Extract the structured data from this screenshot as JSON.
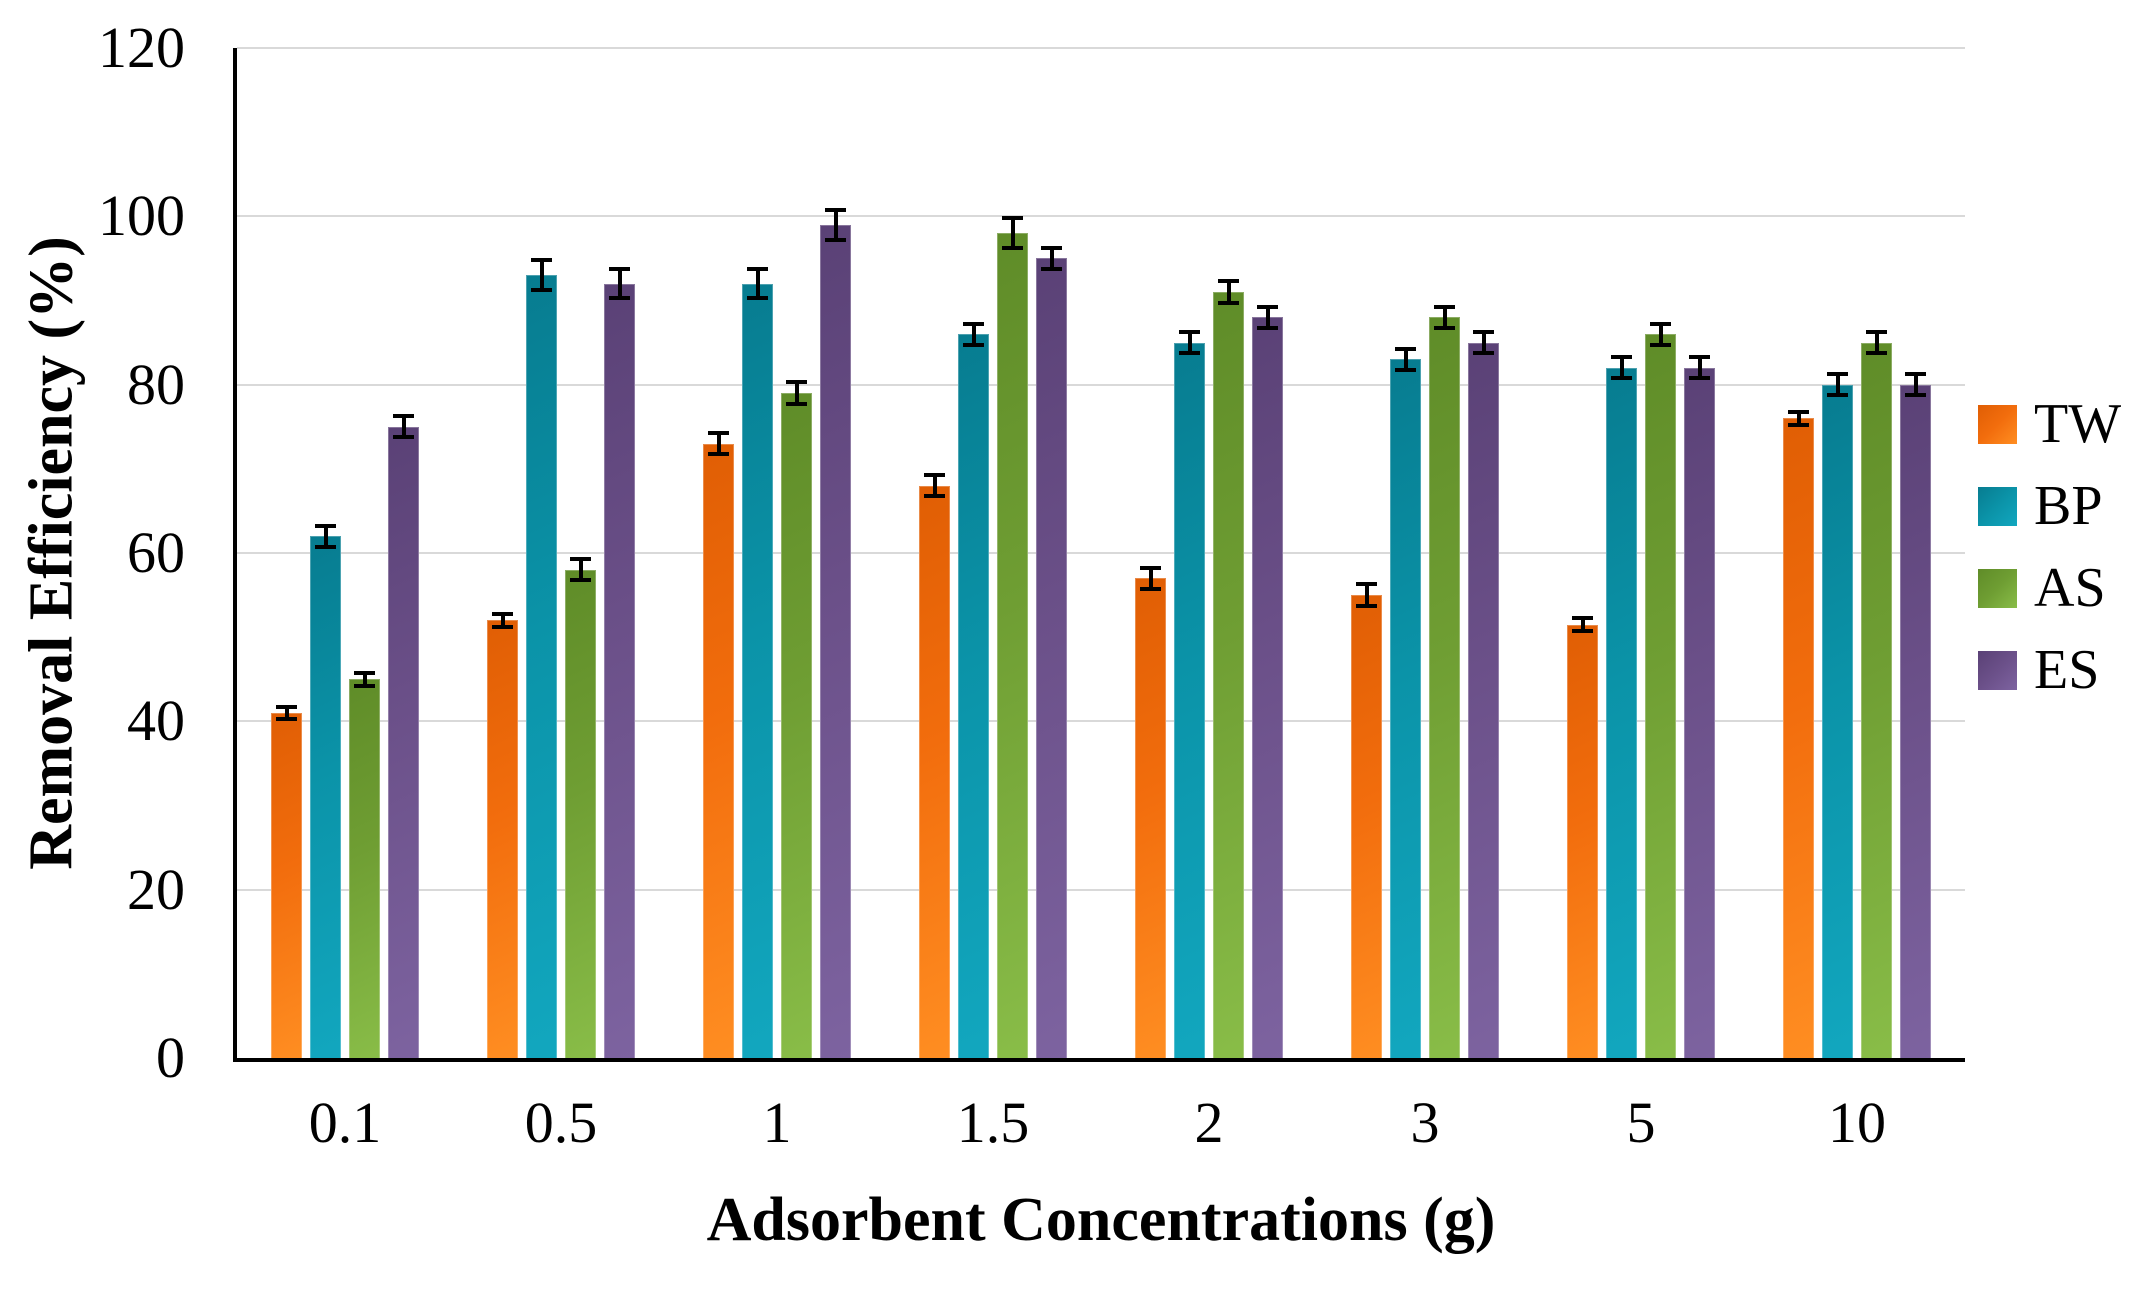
{
  "chart_data": {
    "type": "bar",
    "title": "",
    "xlabel": "Adsorbent Concentrations (g)",
    "ylabel": "Removal Efficiency (%)",
    "categories": [
      "0.1",
      "0.5",
      "1",
      "1.5",
      "2",
      "3",
      "5",
      "10"
    ],
    "series": [
      {
        "name": "TW",
        "color": "#F26D0D",
        "gradient_dark": "#E05E04",
        "gradient_light": "#FF8E22",
        "values": [
          41,
          52,
          73,
          68,
          57,
          55,
          51.5,
          76
        ],
        "errors": [
          1,
          1,
          1.5,
          1.5,
          1.5,
          1.5,
          1,
          1
        ]
      },
      {
        "name": "BP",
        "color": "#0B93A8",
        "gradient_dark": "#077C90",
        "gradient_light": "#12A7BF",
        "values": [
          62,
          93,
          92,
          86,
          85,
          83,
          82,
          80
        ],
        "errors": [
          1.5,
          2,
          2,
          1.5,
          1.5,
          1.5,
          1.5,
          1.5
        ]
      },
      {
        "name": "AS",
        "color": "#6F9E33",
        "gradient_dark": "#5F8C28",
        "gradient_light": "#89BD48",
        "values": [
          45,
          58,
          79,
          98,
          91,
          88,
          86,
          85
        ],
        "errors": [
          1,
          1.5,
          1.5,
          2,
          1.5,
          1.5,
          1.5,
          1.5
        ]
      },
      {
        "name": "ES",
        "color": "#6B5089",
        "gradient_dark": "#5A4176",
        "gradient_light": "#7D63A0",
        "values": [
          75,
          92,
          99,
          95,
          88,
          85,
          82,
          80
        ],
        "errors": [
          1.5,
          2,
          2,
          1.5,
          1.5,
          1.5,
          1.5,
          1.5
        ]
      }
    ],
    "ylim": [
      0,
      120
    ],
    "yticks": [
      0,
      20,
      40,
      60,
      80,
      100,
      120
    ],
    "grid": "horizontal",
    "legend_position": "right",
    "error_bars": true
  },
  "colors": {
    "background": "#FFFFFF",
    "axis": "#000000",
    "gridline": "#D9D9D9",
    "text": "#000000",
    "error_bar": "#000000"
  }
}
